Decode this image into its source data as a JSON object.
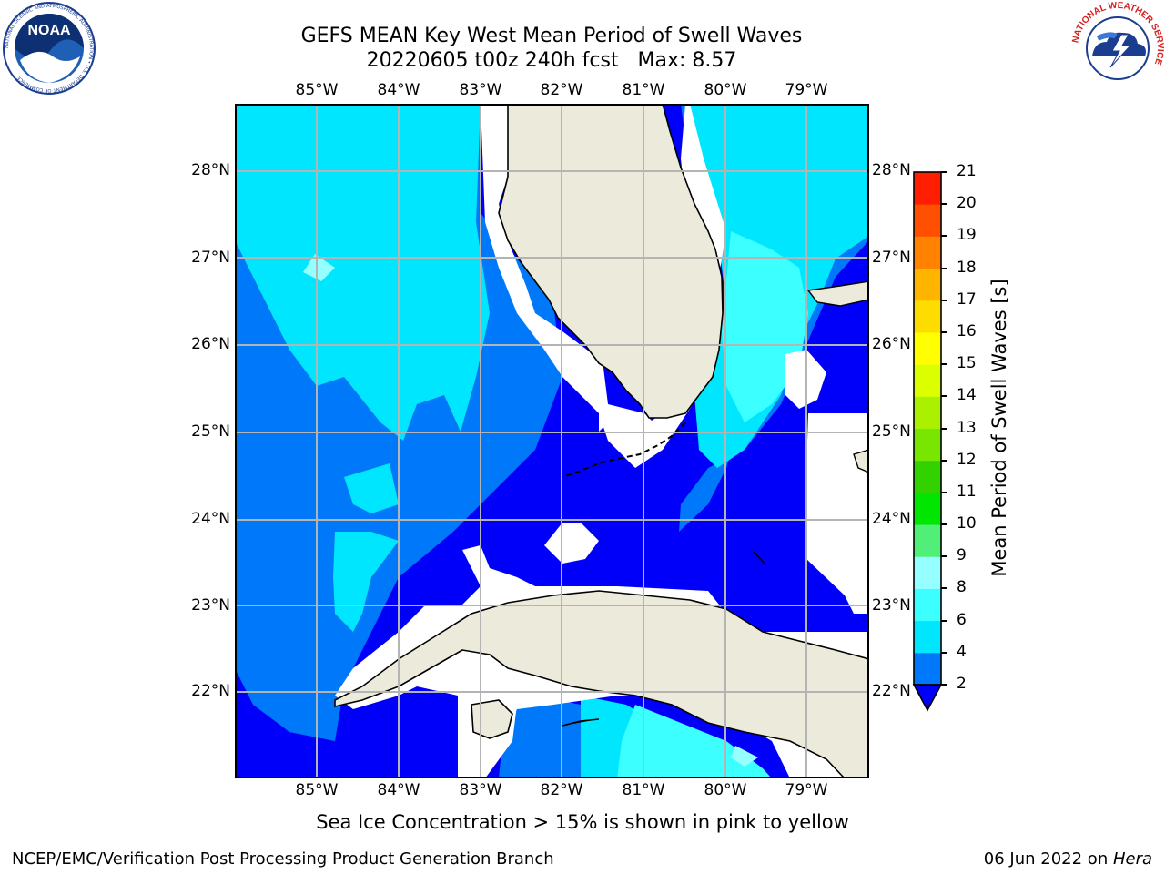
{
  "header": {
    "title_line1": "GEFS MEAN Key West Mean Period of Swell Waves",
    "title_line2": "20220605 t00z 240h fcst   Max: 8.57"
  },
  "logos": {
    "noaa": {
      "name": "noaa-logo",
      "center_text": "NOAA",
      "ring_text": "NATIONAL OCEANIC AND ATMOSPHERIC ADMINISTRATION • U.S. DEPARTMENT OF COMMERCE"
    },
    "nws": {
      "name": "nws-logo",
      "ring_text": "NATIONAL WEATHER SERVICE"
    }
  },
  "map": {
    "lon_labels": [
      "85°W",
      "84°W",
      "83°W",
      "82°W",
      "81°W",
      "80°W",
      "79°W"
    ],
    "lat_labels": [
      "28°N",
      "27°N",
      "26°N",
      "25°N",
      "24°N",
      "23°N",
      "22°N"
    ],
    "colors": {
      "land": "#ecebdb",
      "coast": "#000000",
      "grid": "#b4b4b4",
      "no_data": "#ffffff"
    }
  },
  "colorbar": {
    "label": "Mean Period of Swell Waves [s]",
    "ticks": [
      "2",
      "4",
      "6",
      "8",
      "9",
      "10",
      "11",
      "12",
      "13",
      "14",
      "15",
      "16",
      "17",
      "18",
      "19",
      "20",
      "21"
    ],
    "colors": [
      "#0000fa",
      "#0078fa",
      "#00e6ff",
      "#3cffff",
      "#96ffff",
      "#50f078",
      "#00e600",
      "#32d200",
      "#78e600",
      "#aaf000",
      "#dcff00",
      "#ffff00",
      "#ffdc00",
      "#ffb400",
      "#ff8200",
      "#ff5000",
      "#ff1e00",
      "#ff0000"
    ]
  },
  "footer": {
    "note": "Sea Ice Concentration > 15% is shown in pink to yellow",
    "left": "NCEP/EMC/Verification Post Processing Product Generation Branch",
    "right_prefix": "06 Jun 2022 on ",
    "right_machine": "Hera"
  }
}
